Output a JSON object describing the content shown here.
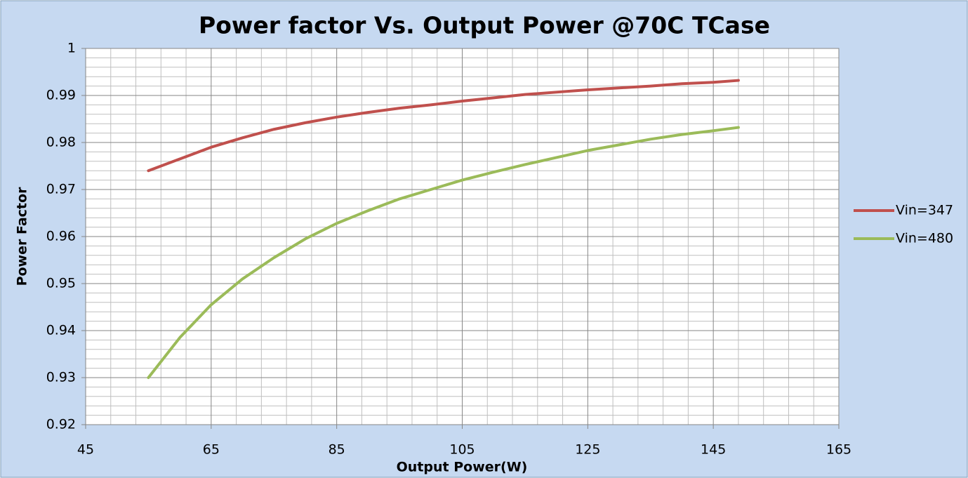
{
  "chart_data": {
    "type": "line",
    "title": "Power factor Vs. Output Power @70C TCase",
    "x_label": "Output Power(W)",
    "y_label": "Power Factor",
    "x": [
      55,
      60,
      65,
      70,
      75,
      80,
      85,
      90,
      95,
      100,
      105,
      110,
      115,
      120,
      125,
      130,
      135,
      140,
      145,
      149
    ],
    "series": [
      {
        "name": "Vin=347",
        "color": "#c0504d",
        "values": [
          0.974,
          0.9765,
          0.979,
          0.981,
          0.9828,
          0.9842,
          0.9854,
          0.9864,
          0.9873,
          0.988,
          0.9888,
          0.9895,
          0.9902,
          0.9907,
          0.9912,
          0.9916,
          0.992,
          0.9925,
          0.9928,
          0.9932
        ]
      },
      {
        "name": "Vin=480",
        "color": "#9bbb59",
        "values": [
          0.93,
          0.9385,
          0.9455,
          0.951,
          0.9555,
          0.9595,
          0.9628,
          0.9655,
          0.968,
          0.97,
          0.972,
          0.9737,
          0.9753,
          0.9768,
          0.9783,
          0.9795,
          0.9807,
          0.9817,
          0.9825,
          0.9832
        ]
      }
    ],
    "xlim": [
      45,
      165
    ],
    "xticks": [
      45,
      65,
      85,
      105,
      125,
      145,
      165
    ],
    "ylim": [
      0.92,
      1
    ],
    "yticks": [
      0.92,
      0.93,
      0.94,
      0.95,
      0.96,
      0.97,
      0.98,
      0.99,
      1
    ],
    "xminorticks": [
      49,
      53,
      57,
      61,
      69,
      73,
      77,
      81,
      89,
      93,
      97,
      101,
      109,
      113,
      117,
      121,
      129,
      133,
      137,
      141,
      149,
      153,
      157,
      161
    ],
    "yminorticks": [
      0.922,
      0.924,
      0.926,
      0.928,
      0.932,
      0.934,
      0.936,
      0.938,
      0.942,
      0.944,
      0.946,
      0.948,
      0.952,
      0.954,
      0.956,
      0.958,
      0.962,
      0.964,
      0.966,
      0.968,
      0.972,
      0.974,
      0.976,
      0.978,
      0.982,
      0.984,
      0.986,
      0.988,
      0.992,
      0.994,
      0.996,
      0.998
    ],
    "grid": true,
    "legend": "right"
  }
}
